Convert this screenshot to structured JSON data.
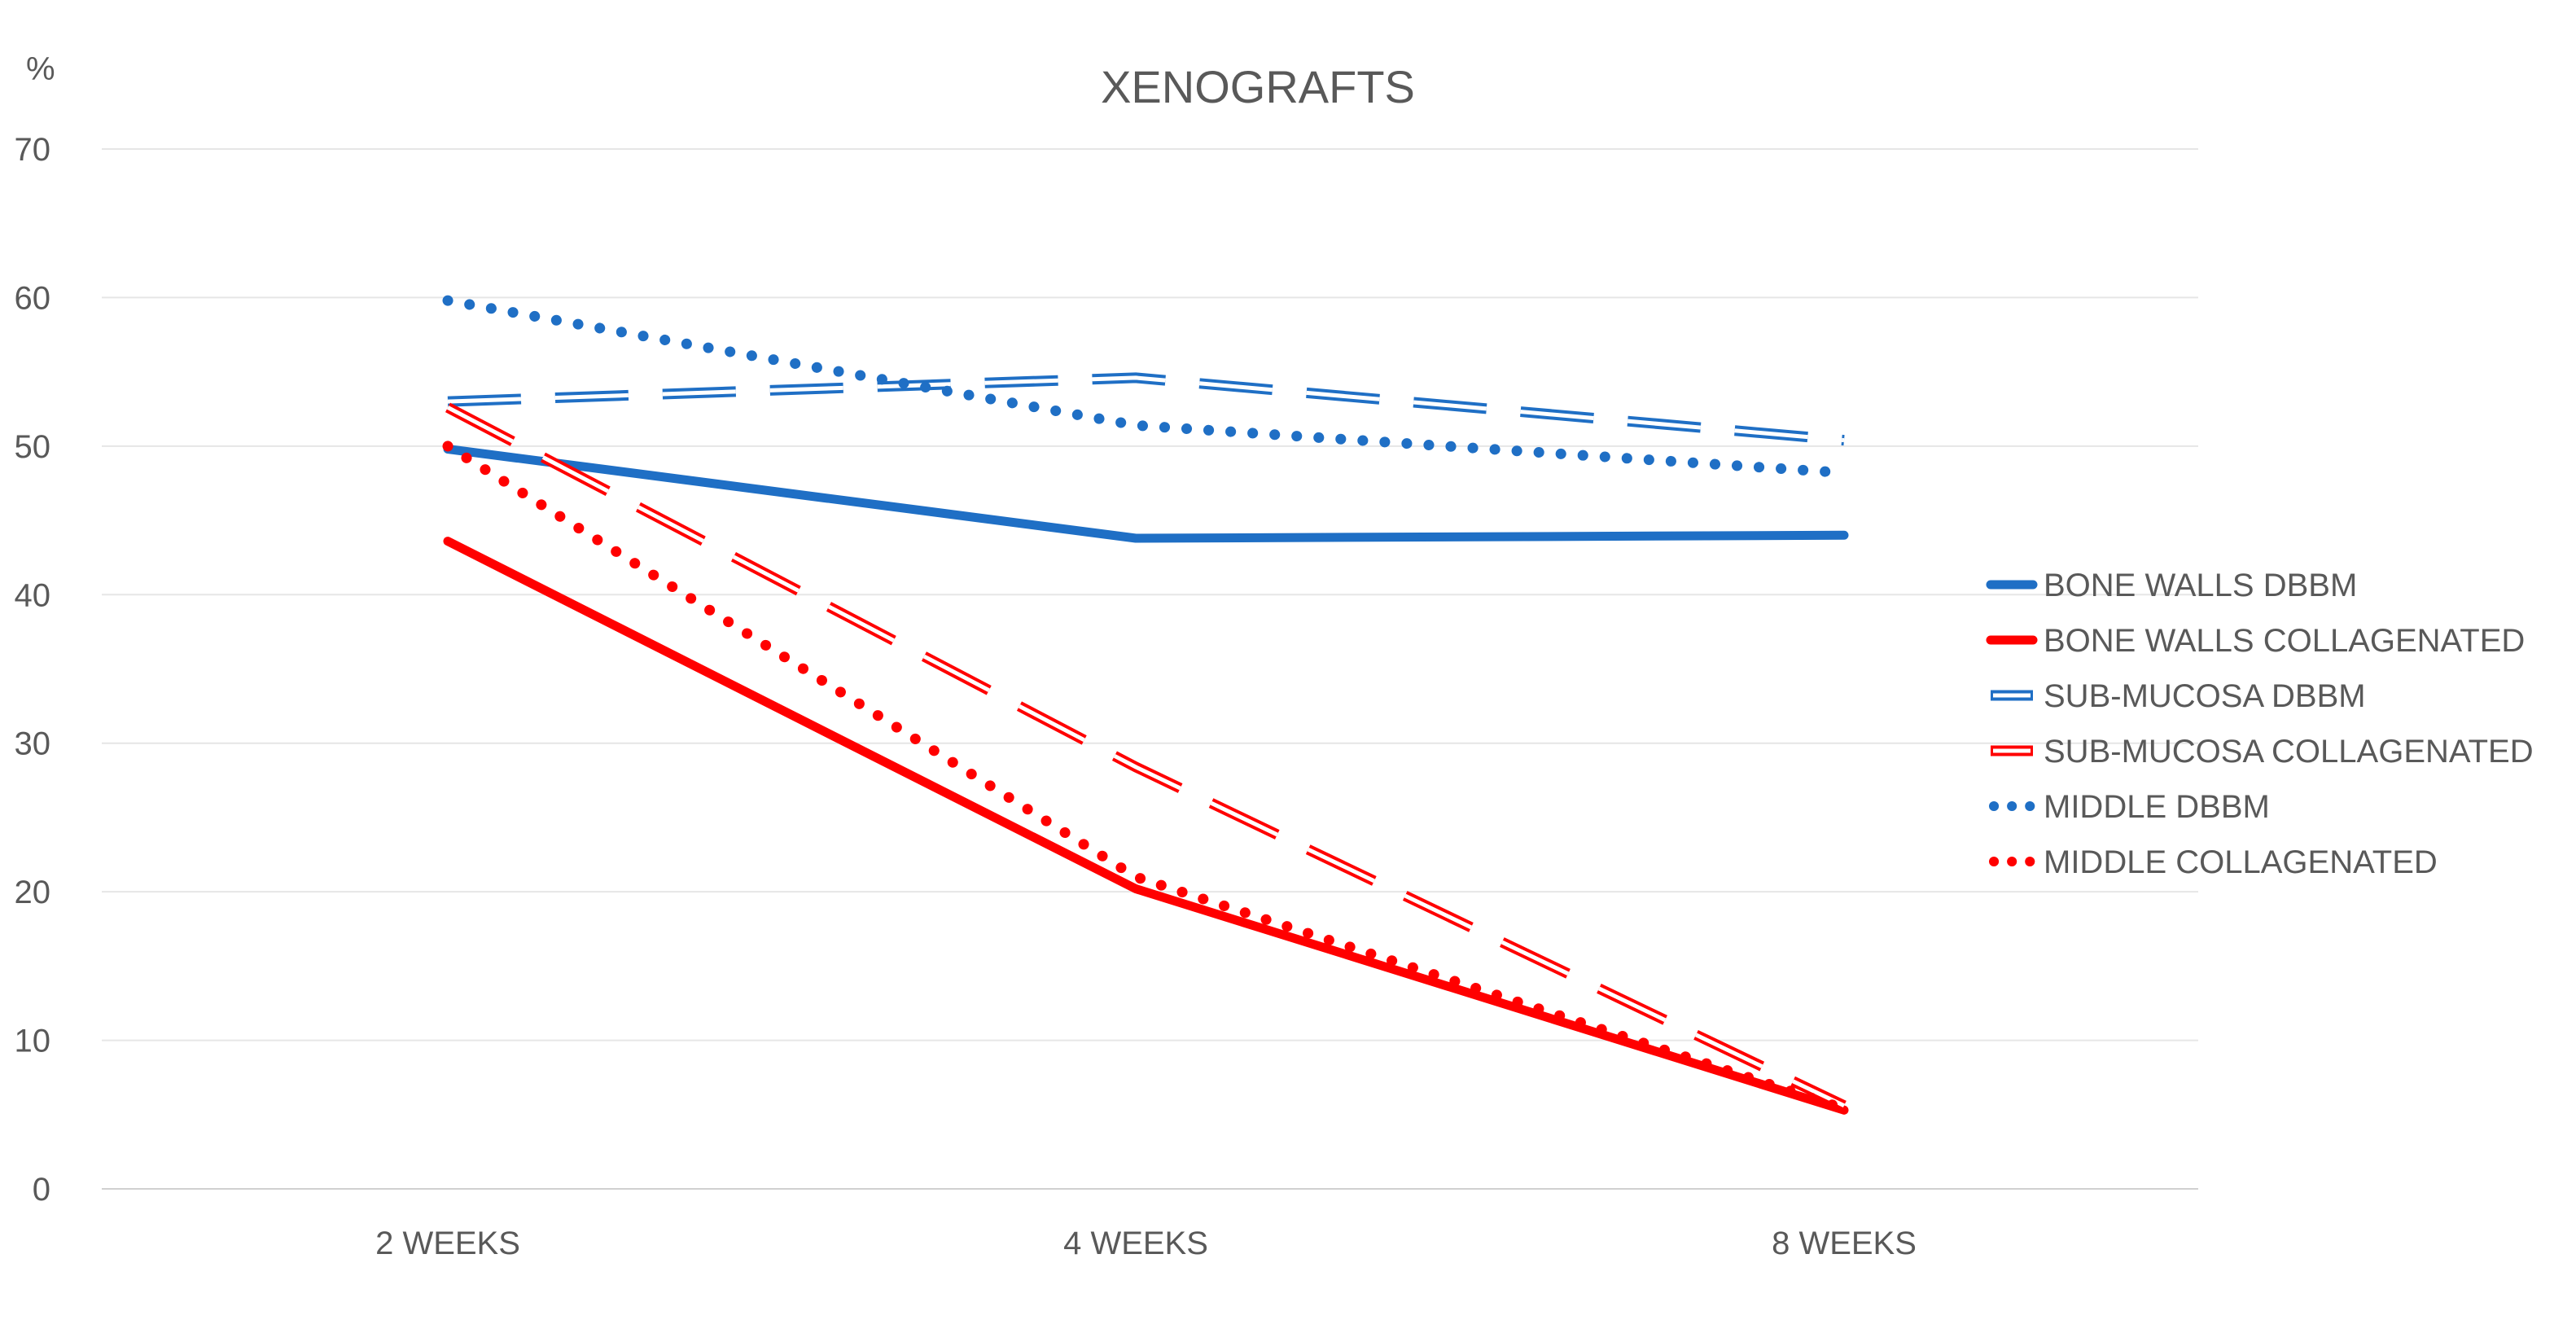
{
  "chart_data": {
    "type": "line",
    "title": "XENOGRAFTS",
    "ylabel": "%",
    "xlabel": "",
    "categories": [
      "2 WEEKS",
      "4 WEEKS",
      "8 WEEKS"
    ],
    "ylim": [
      0,
      70
    ],
    "yticks": [
      "0",
      "10",
      "20",
      "30",
      "40",
      "50",
      "60",
      "70"
    ],
    "grid": true,
    "legend_position": "right",
    "series": [
      {
        "name": "BONE WALLS DBBM",
        "values": [
          49.8,
          43.8,
          44
        ],
        "color": "#1f6fc5",
        "style": "solid"
      },
      {
        "name": "BONE WALLS COLLAGENATED",
        "values": [
          43.6,
          20.2,
          5.3
        ],
        "color": "#ff0000",
        "style": "solid"
      },
      {
        "name": "SUB-MUCOSA DBBM",
        "values": [
          53,
          54.6,
          50.4
        ],
        "color": "#1f6fc5",
        "style": "double-dash"
      },
      {
        "name": "SUB-MUCOSA COLLAGENATED",
        "values": [
          52.6,
          28.4,
          5.6
        ],
        "color": "#ff0000",
        "style": "double-dash"
      },
      {
        "name": "MIDDLE DBBM",
        "values": [
          59.8,
          51.4,
          48.2
        ],
        "color": "#1f6fc5",
        "style": "dotted"
      },
      {
        "name": "MIDDLE COLLAGENATED",
        "values": [
          50,
          21,
          5.4
        ],
        "color": "#ff0000",
        "style": "dotted"
      }
    ]
  }
}
